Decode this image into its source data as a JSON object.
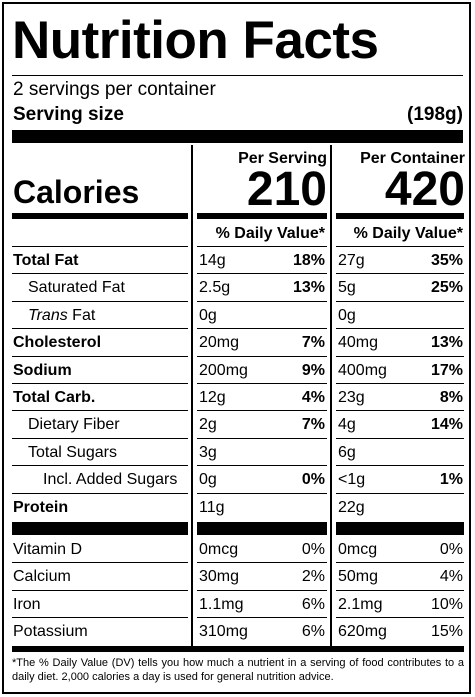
{
  "title": "Nutrition Facts",
  "servings_per_container": "2 servings per container",
  "serving_size_label": "Serving size",
  "serving_size_value": "(198g)",
  "calories_label": "Calories",
  "columns": {
    "per_serving": {
      "heading": "Per Serving",
      "calories": "210",
      "dv_heading": "% Daily Value*"
    },
    "per_container": {
      "heading": "Per Container",
      "calories": "420",
      "dv_heading": "% Daily Value*"
    }
  },
  "nutrients": [
    {
      "label": "Total Fat",
      "bold": true,
      "indent": 0,
      "serving_amount": "14g",
      "serving_dv": "18%",
      "container_amount": "27g",
      "container_dv": "35%"
    },
    {
      "label": "Saturated Fat",
      "bold": false,
      "indent": 1,
      "serving_amount": "2.5g",
      "serving_dv": "13%",
      "container_amount": "5g",
      "container_dv": "25%"
    },
    {
      "label_italic": "Trans",
      "label": " Fat",
      "bold": false,
      "indent": 1,
      "serving_amount": "0g",
      "serving_dv": "",
      "container_amount": "0g",
      "container_dv": ""
    },
    {
      "label": "Cholesterol",
      "bold": true,
      "indent": 0,
      "serving_amount": "20mg",
      "serving_dv": "7%",
      "container_amount": "40mg",
      "container_dv": "13%"
    },
    {
      "label": "Sodium",
      "bold": true,
      "indent": 0,
      "serving_amount": "200mg",
      "serving_dv": "9%",
      "container_amount": "400mg",
      "container_dv": "17%"
    },
    {
      "label": "Total Carb.",
      "bold": true,
      "indent": 0,
      "serving_amount": "12g",
      "serving_dv": "4%",
      "container_amount": "23g",
      "container_dv": "8%"
    },
    {
      "label": "Dietary Fiber",
      "bold": false,
      "indent": 1,
      "serving_amount": "2g",
      "serving_dv": "7%",
      "container_amount": "4g",
      "container_dv": "14%"
    },
    {
      "label": "Total Sugars",
      "bold": false,
      "indent": 1,
      "serving_amount": "3g",
      "serving_dv": "",
      "container_amount": "6g",
      "container_dv": ""
    },
    {
      "label": "Incl. Added Sugars",
      "bold": false,
      "indent": 2,
      "serving_amount": "0g",
      "serving_dv": "0%",
      "container_amount": "<1g",
      "container_dv": "1%"
    },
    {
      "label": "Protein",
      "bold": true,
      "indent": 0,
      "serving_amount": "11g",
      "serving_dv": "",
      "container_amount": "22g",
      "container_dv": ""
    }
  ],
  "vitamins": [
    {
      "label": "Vitamin D",
      "serving_amount": "0mcg",
      "serving_dv": "0%",
      "container_amount": "0mcg",
      "container_dv": "0%"
    },
    {
      "label": "Calcium",
      "serving_amount": "30mg",
      "serving_dv": "2%",
      "container_amount": "50mg",
      "container_dv": "4%"
    },
    {
      "label": "Iron",
      "serving_amount": "1.1mg",
      "serving_dv": "6%",
      "container_amount": "2.1mg",
      "container_dv": "10%"
    },
    {
      "label": "Potassium",
      "serving_amount": "310mg",
      "serving_dv": "6%",
      "container_amount": "620mg",
      "container_dv": "15%"
    }
  ],
  "footnote": "*The % Daily Value (DV) tells you how much a nutrient in a serving of food contributes to a daily diet. 2,000 calories a day is used for general nutrition advice."
}
